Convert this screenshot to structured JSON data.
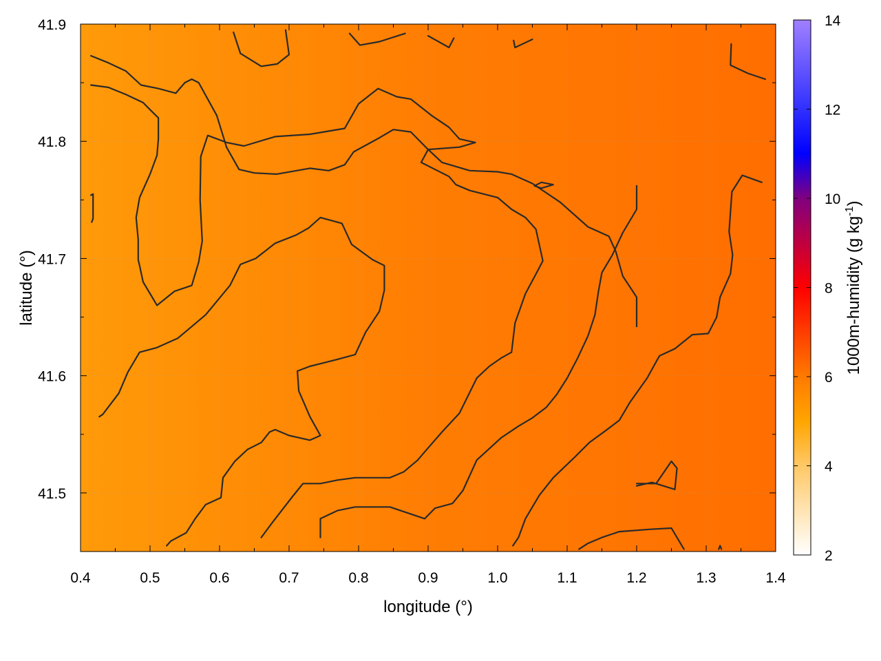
{
  "chart_data": {
    "type": "heatmap",
    "title": "",
    "xlabel": "longitude (°)",
    "ylabel": "latitude (°)",
    "xlim": [
      0.4,
      1.4
    ],
    "ylim": [
      41.45,
      41.9
    ],
    "x_ticks": [
      "0.4",
      "0.5",
      "0.6",
      "0.7",
      "0.8",
      "0.9",
      "1.0",
      "1.1",
      "1.2",
      "1.3",
      "1.4"
    ],
    "y_ticks": [
      "41.5",
      "41.6",
      "41.7",
      "41.8",
      "41.9"
    ],
    "grid": true,
    "colorbar": {
      "label": "1000m-humidity (g kg",
      "label_sup": "-1",
      "label_end": ")",
      "range": [
        2,
        14
      ],
      "ticks": [
        "2",
        "4",
        "6",
        "8",
        "10",
        "12",
        "14"
      ],
      "palette": [
        {
          "value": 2,
          "color": "#ffffff"
        },
        {
          "value": 4,
          "color": "#ffc866"
        },
        {
          "value": 5,
          "color": "#ffa500"
        },
        {
          "value": 6,
          "color": "#ff7a00"
        },
        {
          "value": 8,
          "color": "#ff0000"
        },
        {
          "value": 10,
          "color": "#800080"
        },
        {
          "value": 11,
          "color": "#0000ff"
        },
        {
          "value": 12,
          "color": "#3030ff"
        },
        {
          "value": 14,
          "color": "#a080ff"
        }
      ]
    },
    "field_description_values": {
      "west_edge": 5.2,
      "center": 6.0,
      "east_edge": 6.4
    },
    "contours": [
      [
        [
          0.415,
          41.873
        ],
        [
          0.44,
          41.867
        ],
        [
          0.465,
          41.86
        ],
        [
          0.487,
          41.848
        ],
        [
          0.512,
          41.845
        ],
        [
          0.537,
          41.841
        ],
        [
          0.55,
          41.85
        ],
        [
          0.56,
          41.853
        ],
        [
          0.57,
          41.85
        ],
        [
          0.596,
          41.822
        ],
        [
          0.61,
          41.795
        ],
        [
          0.628,
          41.776
        ],
        [
          0.65,
          41.773
        ],
        [
          0.682,
          41.772
        ],
        [
          0.73,
          41.777
        ],
        [
          0.757,
          41.775
        ],
        [
          0.78,
          41.78
        ],
        [
          0.793,
          41.791
        ],
        [
          0.83,
          41.803
        ],
        [
          0.85,
          41.81
        ],
        [
          0.875,
          41.808
        ],
        [
          0.9,
          41.793
        ],
        [
          0.92,
          41.782
        ],
        [
          0.96,
          41.775
        ],
        [
          1.0,
          41.774
        ],
        [
          1.02,
          41.772
        ],
        [
          1.05,
          41.764
        ],
        [
          1.09,
          41.748
        ],
        [
          1.13,
          41.727
        ],
        [
          1.16,
          41.719
        ],
        [
          1.17,
          41.706
        ],
        [
          1.18,
          41.685
        ],
        [
          1.2,
          41.667
        ],
        [
          1.2,
          41.642
        ]
      ],
      [
        [
          0.415,
          41.848
        ],
        [
          0.44,
          41.846
        ],
        [
          0.465,
          41.84
        ],
        [
          0.49,
          41.833
        ],
        [
          0.5,
          41.827
        ],
        [
          0.512,
          41.82
        ],
        [
          0.512,
          41.802
        ],
        [
          0.51,
          41.788
        ],
        [
          0.5,
          41.772
        ],
        [
          0.485,
          41.752
        ],
        [
          0.48,
          41.735
        ],
        [
          0.483,
          41.716
        ],
        [
          0.483,
          41.699
        ],
        [
          0.485,
          41.694
        ],
        [
          0.49,
          41.68
        ],
        [
          0.505,
          41.665
        ],
        [
          0.51,
          41.66
        ],
        [
          0.535,
          41.672
        ],
        [
          0.56,
          41.677
        ],
        [
          0.57,
          41.697
        ],
        [
          0.575,
          41.715
        ],
        [
          0.572,
          41.75
        ],
        [
          0.573,
          41.787
        ],
        [
          0.583,
          41.805
        ],
        [
          0.61,
          41.799
        ],
        [
          0.635,
          41.796
        ],
        [
          0.68,
          41.804
        ],
        [
          0.73,
          41.806
        ],
        [
          0.78,
          41.811
        ],
        [
          0.8,
          41.832
        ],
        [
          0.828,
          41.845
        ],
        [
          0.855,
          41.838
        ],
        [
          0.875,
          41.836
        ],
        [
          0.905,
          41.822
        ],
        [
          0.93,
          41.812
        ],
        [
          0.945,
          41.802
        ],
        [
          0.968,
          41.799
        ],
        [
          0.945,
          41.795
        ],
        [
          0.9,
          41.793
        ],
        [
          0.89,
          41.782
        ],
        [
          0.93,
          41.77
        ],
        [
          0.94,
          41.763
        ],
        [
          0.96,
          41.758
        ],
        [
          1.0,
          41.752
        ],
        [
          1.02,
          41.742
        ],
        [
          1.04,
          41.735
        ],
        [
          1.055,
          41.725
        ],
        [
          1.065,
          41.698
        ],
        [
          1.058,
          41.69
        ],
        [
          1.04,
          41.67
        ],
        [
          1.025,
          41.645
        ],
        [
          1.02,
          41.62
        ],
        [
          1.005,
          41.615
        ],
        [
          0.988,
          41.608
        ],
        [
          0.97,
          41.598
        ],
        [
          0.945,
          41.568
        ],
        [
          0.92,
          41.552
        ],
        [
          0.895,
          41.535
        ],
        [
          0.885,
          41.528
        ],
        [
          0.875,
          41.523
        ],
        [
          0.865,
          41.518
        ],
        [
          0.845,
          41.513
        ],
        [
          0.795,
          41.513
        ],
        [
          0.77,
          41.511
        ],
        [
          0.745,
          41.508
        ],
        [
          0.72,
          41.508
        ],
        [
          0.705,
          41.497
        ],
        [
          0.675,
          41.474
        ],
        [
          0.66,
          41.462
        ]
      ],
      [
        [
          0.427,
          41.565
        ],
        [
          0.432,
          41.567
        ],
        [
          0.455,
          41.585
        ],
        [
          0.468,
          41.603
        ],
        [
          0.485,
          41.62
        ],
        [
          0.51,
          41.624
        ],
        [
          0.54,
          41.632
        ],
        [
          0.56,
          41.642
        ],
        [
          0.58,
          41.652
        ],
        [
          0.615,
          41.677
        ],
        [
          0.63,
          41.695
        ],
        [
          0.652,
          41.7
        ],
        [
          0.68,
          41.713
        ],
        [
          0.71,
          41.72
        ],
        [
          0.728,
          41.726
        ],
        [
          0.745,
          41.735
        ],
        [
          0.776,
          41.73
        ],
        [
          0.79,
          41.712
        ],
        [
          0.82,
          41.699
        ],
        [
          0.837,
          41.694
        ],
        [
          0.837,
          41.673
        ],
        [
          0.83,
          41.655
        ],
        [
          0.81,
          41.637
        ],
        [
          0.795,
          41.618
        ],
        [
          0.77,
          41.614
        ],
        [
          0.75,
          41.611
        ],
        [
          0.73,
          41.608
        ],
        [
          0.712,
          41.604
        ],
        [
          0.714,
          41.587
        ],
        [
          0.73,
          41.565
        ],
        [
          0.745,
          41.549
        ],
        [
          0.73,
          41.545
        ],
        [
          0.7,
          41.549
        ],
        [
          0.68,
          41.554
        ],
        [
          0.672,
          41.552
        ],
        [
          0.66,
          41.543
        ],
        [
          0.64,
          41.537
        ],
        [
          0.622,
          41.527
        ],
        [
          0.605,
          41.513
        ],
        [
          0.602,
          41.496
        ],
        [
          0.58,
          41.49
        ],
        [
          0.565,
          41.478
        ],
        [
          0.552,
          41.466
        ],
        [
          0.53,
          41.459
        ],
        [
          0.524,
          41.455
        ]
      ],
      [
        [
          0.745,
          41.462
        ],
        [
          0.745,
          41.478
        ],
        [
          0.77,
          41.485
        ],
        [
          0.795,
          41.488
        ],
        [
          0.845,
          41.488
        ],
        [
          0.87,
          41.483
        ],
        [
          0.895,
          41.478
        ],
        [
          0.91,
          41.487
        ],
        [
          0.935,
          41.491
        ],
        [
          0.95,
          41.502
        ],
        [
          0.97,
          41.528
        ],
        [
          1.005,
          41.547
        ],
        [
          1.03,
          41.557
        ],
        [
          1.05,
          41.564
        ],
        [
          1.07,
          41.573
        ],
        [
          1.085,
          41.584
        ],
        [
          1.1,
          41.598
        ],
        [
          1.115,
          41.615
        ],
        [
          1.13,
          41.634
        ],
        [
          1.14,
          41.652
        ],
        [
          1.145,
          41.672
        ],
        [
          1.15,
          41.688
        ],
        [
          1.165,
          41.703
        ],
        [
          1.18,
          41.722
        ],
        [
          1.2,
          41.742
        ],
        [
          1.2,
          41.762
        ]
      ],
      [
        [
          1.022,
          41.455
        ],
        [
          1.03,
          41.462
        ],
        [
          1.04,
          41.478
        ],
        [
          1.06,
          41.498
        ],
        [
          1.08,
          41.513
        ],
        [
          1.11,
          41.53
        ],
        [
          1.132,
          41.543
        ],
        [
          1.155,
          41.553
        ],
        [
          1.175,
          41.562
        ],
        [
          1.19,
          41.577
        ],
        [
          1.215,
          41.598
        ],
        [
          1.23,
          41.614
        ],
        [
          1.233,
          41.617
        ],
        [
          1.255,
          41.623
        ],
        [
          1.28,
          41.635
        ],
        [
          1.303,
          41.636
        ],
        [
          1.315,
          41.65
        ],
        [
          1.32,
          41.667
        ],
        [
          1.335,
          41.687
        ],
        [
          1.338,
          41.703
        ],
        [
          1.333,
          41.723
        ],
        [
          1.337,
          41.757
        ],
        [
          1.352,
          41.771
        ],
        [
          1.38,
          41.765
        ]
      ],
      [
        [
          1.117,
          41.452
        ],
        [
          1.13,
          41.457
        ],
        [
          1.15,
          41.462
        ],
        [
          1.175,
          41.467
        ],
        [
          1.22,
          41.469
        ],
        [
          1.25,
          41.47
        ],
        [
          1.268,
          41.452
        ]
      ],
      [
        [
          1.2,
          41.506
        ],
        [
          1.222,
          41.509
        ],
        [
          1.255,
          41.503
        ],
        [
          1.258,
          41.521
        ],
        [
          1.25,
          41.527
        ],
        [
          1.228,
          41.508
        ],
        [
          1.2,
          41.508
        ]
      ],
      [
        [
          1.053,
          41.762
        ],
        [
          1.063,
          41.765
        ],
        [
          1.08,
          41.763
        ],
        [
          1.063,
          41.76
        ],
        [
          1.053,
          41.762
        ]
      ],
      [
        [
          0.62,
          41.893
        ],
        [
          0.63,
          41.875
        ],
        [
          0.66,
          41.864
        ],
        [
          0.683,
          41.866
        ],
        [
          0.7,
          41.874
        ],
        [
          0.695,
          41.895
        ]
      ],
      [
        [
          0.787,
          41.892
        ],
        [
          0.802,
          41.882
        ],
        [
          0.83,
          41.885
        ],
        [
          0.867,
          41.892
        ]
      ],
      [
        [
          0.9,
          41.89
        ],
        [
          0.915,
          41.885
        ],
        [
          0.93,
          41.88
        ],
        [
          0.937,
          41.888
        ]
      ],
      [
        [
          1.023,
          41.886
        ],
        [
          1.025,
          41.88
        ],
        [
          1.05,
          41.887
        ]
      ],
      [
        [
          1.336,
          41.883
        ],
        [
          1.335,
          41.865
        ],
        [
          1.36,
          41.858
        ],
        [
          1.385,
          41.853
        ]
      ],
      [
        [
          0.415,
          41.754
        ],
        [
          0.418,
          41.755
        ],
        [
          0.418,
          41.734
        ],
        [
          0.416,
          41.731
        ]
      ],
      [
        [
          1.318,
          41.452
        ],
        [
          1.32,
          41.455
        ],
        [
          1.322,
          41.452
        ]
      ]
    ]
  }
}
